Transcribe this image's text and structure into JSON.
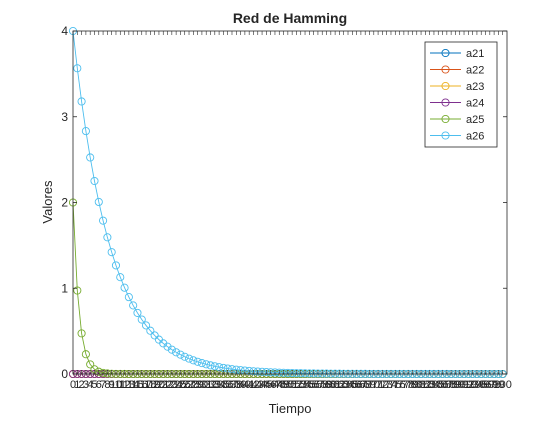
{
  "chart_data": {
    "type": "line",
    "title": "Red de Hamming",
    "xlabel": "Tiempo",
    "ylabel": "Valores",
    "xlim": [
      0,
      101
    ],
    "ylim": [
      0,
      4
    ],
    "yticks": [
      0,
      1,
      2,
      3,
      4
    ],
    "xtick_labels": [
      "0",
      "1",
      "2",
      "3",
      "4",
      "5",
      "6",
      "7",
      "8",
      "9",
      "10",
      "11",
      "12",
      "13",
      "14",
      "15",
      "16",
      "17",
      "18",
      "19",
      "20",
      "21",
      "22",
      "23",
      "24",
      "25",
      "26",
      "27",
      "28",
      "29",
      "30",
      "31",
      "32",
      "33",
      "34",
      "35",
      "36",
      "37",
      "38",
      "39",
      "40",
      "41",
      "42",
      "43",
      "44",
      "45",
      "46",
      "47",
      "48",
      "49",
      "50",
      "51",
      "52",
      "53",
      "54",
      "55",
      "56",
      "57",
      "58",
      "59",
      "60",
      "61",
      "62",
      "63",
      "64",
      "65",
      "66",
      "67",
      "68",
      "69",
      "70",
      "71",
      "72",
      "73",
      "74",
      "75",
      "76",
      "77",
      "78",
      "79",
      "80",
      "81",
      "82",
      "83",
      "84",
      "85",
      "86",
      "87",
      "88",
      "89",
      "90",
      "91",
      "92",
      "93",
      "94",
      "95",
      "96",
      "97",
      "98",
      "99",
      "100"
    ],
    "legend_position": "top-right",
    "marker": "circle",
    "series": [
      {
        "name": "a21",
        "color": "#0072BD",
        "start": 0,
        "decay": 0
      },
      {
        "name": "a22",
        "color": "#D95319",
        "start": 0,
        "decay": 0
      },
      {
        "name": "a23",
        "color": "#EDB120",
        "start": 0,
        "decay": 0
      },
      {
        "name": "a24",
        "color": "#7E2F8E",
        "start": 0,
        "decay": 0
      },
      {
        "name": "a25",
        "color": "#77AC30",
        "start": 2,
        "decay": 0.72
      },
      {
        "name": "a26",
        "color": "#4DBEEE",
        "start": 4,
        "decay": 0.115
      }
    ]
  }
}
